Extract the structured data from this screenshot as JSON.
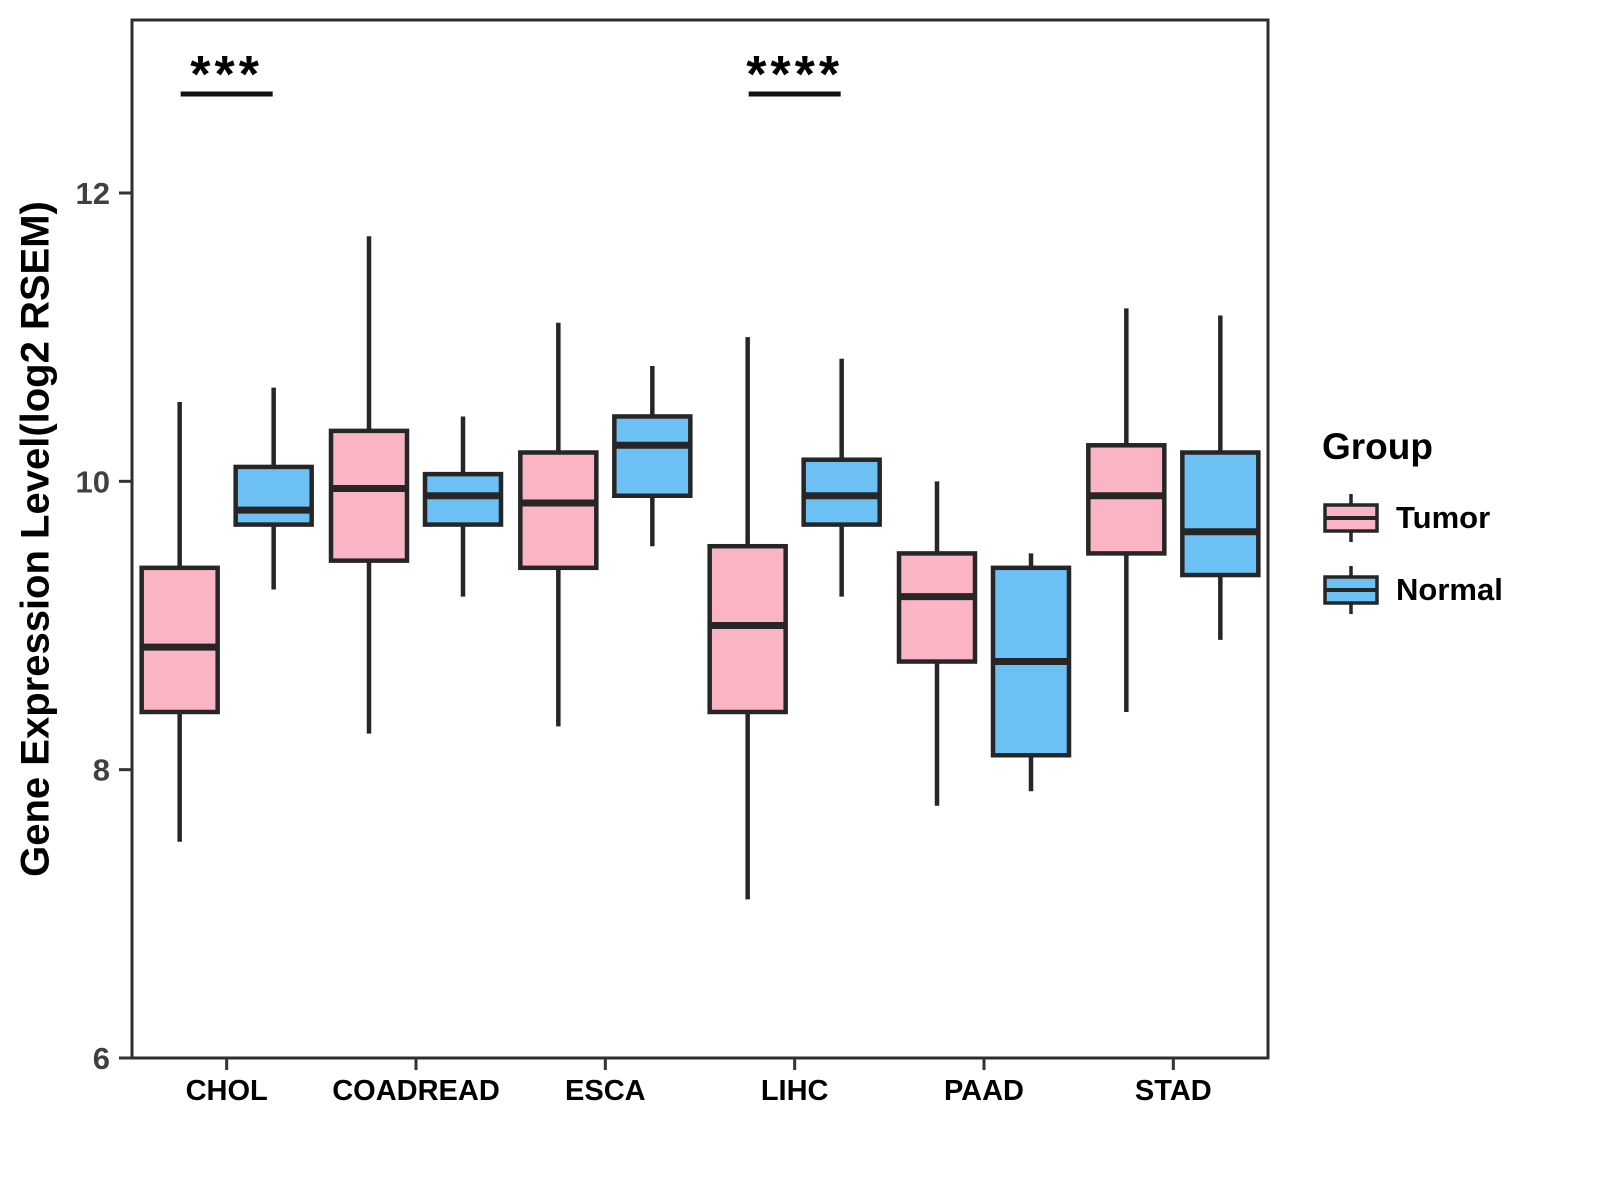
{
  "figure": {
    "background": "#FFFFFF",
    "panel_border_color": "#2E2E2E",
    "axis_tick_color": "#333333",
    "axis_text_color": "#404040",
    "label_color": "#000000"
  },
  "chart_data": {
    "type": "boxplot",
    "title": "",
    "xlabel": "",
    "ylabel": "Gene Expression Level(log2 RSEM)",
    "ylim": [
      6,
      13.2
    ],
    "yticks": [
      6,
      8,
      10,
      12
    ],
    "grid": "off",
    "categories": [
      "CHOL",
      "COADREAD",
      "ESCA",
      "LIHC",
      "PAAD",
      "STAD"
    ],
    "series": [
      {
        "name": "Tumor",
        "fill": "#FAB4C3",
        "stroke": "#262626",
        "boxes": [
          {
            "category": "CHOL",
            "whisker_low": 7.5,
            "q1": 8.4,
            "median": 8.85,
            "q3": 9.4,
            "whisker_high": 10.55
          },
          {
            "category": "COADREAD",
            "whisker_low": 8.25,
            "q1": 9.45,
            "median": 9.95,
            "q3": 10.35,
            "whisker_high": 11.7
          },
          {
            "category": "ESCA",
            "whisker_low": 8.3,
            "q1": 9.4,
            "median": 9.85,
            "q3": 10.2,
            "whisker_high": 11.1
          },
          {
            "category": "LIHC",
            "whisker_low": 7.1,
            "q1": 8.4,
            "median": 9.0,
            "q3": 9.55,
            "whisker_high": 11.0
          },
          {
            "category": "PAAD",
            "whisker_low": 7.75,
            "q1": 8.75,
            "median": 9.2,
            "q3": 9.5,
            "whisker_high": 10.0
          },
          {
            "category": "STAD",
            "whisker_low": 8.4,
            "q1": 9.5,
            "median": 9.9,
            "q3": 10.25,
            "whisker_high": 11.2
          }
        ]
      },
      {
        "name": "Normal",
        "fill": "#6DC0F3",
        "stroke": "#262626",
        "boxes": [
          {
            "category": "CHOL",
            "whisker_low": 9.25,
            "q1": 9.7,
            "median": 9.8,
            "q3": 10.1,
            "whisker_high": 10.65
          },
          {
            "category": "COADREAD",
            "whisker_low": 9.2,
            "q1": 9.7,
            "median": 9.9,
            "q3": 10.05,
            "whisker_high": 10.45
          },
          {
            "category": "ESCA",
            "whisker_low": 9.55,
            "q1": 9.9,
            "median": 10.25,
            "q3": 10.45,
            "whisker_high": 10.8
          },
          {
            "category": "LIHC",
            "whisker_low": 9.2,
            "q1": 9.7,
            "median": 9.9,
            "q3": 10.15,
            "whisker_high": 10.85
          },
          {
            "category": "PAAD",
            "whisker_low": 7.85,
            "q1": 8.1,
            "median": 8.75,
            "q3": 9.4,
            "whisker_high": 9.5
          },
          {
            "category": "STAD",
            "whisker_low": 8.9,
            "q1": 9.35,
            "median": 9.65,
            "q3": 10.2,
            "whisker_high": 11.15
          }
        ]
      }
    ],
    "significance": [
      {
        "category": "CHOL",
        "label": "***"
      },
      {
        "category": "LIHC",
        "label": "****"
      }
    ],
    "legend": {
      "title": "Group",
      "position": "right",
      "entries": [
        "Tumor",
        "Normal"
      ]
    }
  }
}
